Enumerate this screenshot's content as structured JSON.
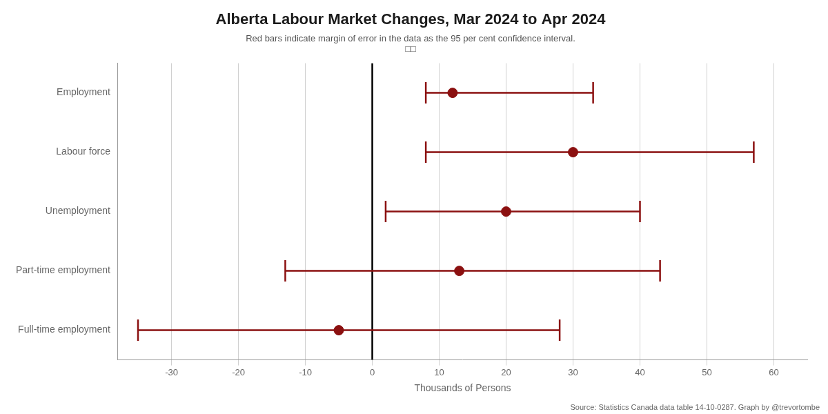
{
  "chart_data": {
    "type": "scatter",
    "title": "Alberta Labour Market Changes, Mar 2024 to Apr 2024",
    "subtitle": "Red bars indicate margin of error in the data as the 95 per cent confidence interval.",
    "subtitle2": "□□",
    "xlabel": "Thousands of Persons",
    "source": "Source: Statistics Canada data table 14-10-0287. Graph by @trevortombe",
    "categories": [
      "Employment",
      "Labour force",
      "Unemployment",
      "Part-time employment",
      "Full-time employment"
    ],
    "values": [
      12,
      30,
      20,
      13,
      -5
    ],
    "error_low": [
      8,
      8,
      2,
      -13,
      -35
    ],
    "error_high": [
      33,
      57,
      40,
      43,
      28
    ],
    "color": "#8B1010",
    "zero_line": 0,
    "orientation": "horizontal",
    "grid": true,
    "xlim": [
      -38,
      65
    ],
    "xticks": [
      -30,
      -20,
      -10,
      0,
      10,
      20,
      30,
      40,
      50,
      60
    ]
  }
}
